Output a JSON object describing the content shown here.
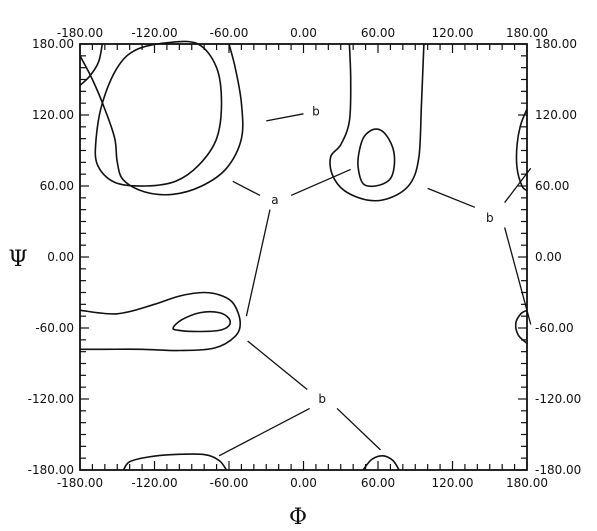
{
  "chart_data": {
    "type": "contour",
    "xlabel": "Φ",
    "ylabel": "Ψ",
    "xlim": [
      -180,
      180
    ],
    "ylim": [
      -180,
      180
    ],
    "x_ticks": [
      "-180.00",
      "-120.00",
      "-60.00",
      "0.00",
      "60.00",
      "120.00",
      "180.00"
    ],
    "y_ticks": [
      "-180.00",
      "-120.00",
      "-60.00",
      "0.00",
      "60.00",
      "120.00",
      "180.00"
    ],
    "minor_tick_step": 10,
    "grid": false,
    "region_labels": [
      {
        "text": "a",
        "phi": -23,
        "psi": 48
      },
      {
        "text": "b",
        "phi": 10,
        "psi": 123
      },
      {
        "text": "b",
        "phi": 150,
        "psi": 33
      },
      {
        "text": "b",
        "phi": 15,
        "psi": -120
      }
    ],
    "leader_lines": [
      {
        "label_index": 0,
        "from": [
          -35,
          52
        ],
        "to": [
          -57,
          64
        ]
      },
      {
        "label_index": 0,
        "from": [
          -27,
          40
        ],
        "to": [
          -46,
          -50
        ]
      },
      {
        "label_index": 0,
        "from": [
          -10,
          52
        ],
        "to": [
          38,
          74
        ]
      },
      {
        "label_index": 1,
        "from": [
          0,
          121
        ],
        "to": [
          -30,
          115
        ]
      },
      {
        "label_index": 2,
        "from": [
          138,
          42
        ],
        "to": [
          100,
          58
        ]
      },
      {
        "label_index": 2,
        "from": [
          162,
          46
        ],
        "to": [
          183,
          75
        ]
      },
      {
        "label_index": 2,
        "from": [
          162,
          25
        ],
        "to": [
          183,
          -57
        ]
      },
      {
        "label_index": 3,
        "from": [
          3,
          -112
        ],
        "to": [
          -45,
          -71
        ]
      },
      {
        "label_index": 3,
        "from": [
          5,
          -128
        ],
        "to": [
          -68,
          -168
        ]
      },
      {
        "label_index": 3,
        "from": [
          27,
          -128
        ],
        "to": [
          62,
          -163
        ]
      }
    ],
    "contours": [
      {
        "name": "outer-upper-left",
        "points": [
          [
            -180,
            170
          ],
          [
            -170,
            150
          ],
          [
            -160,
            125
          ],
          [
            -152,
            100
          ],
          [
            -150,
            80
          ],
          [
            -145,
            65
          ],
          [
            -128,
            55
          ],
          [
            -105,
            53
          ],
          [
            -82,
            60
          ],
          [
            -62,
            75
          ],
          [
            -50,
            100
          ],
          [
            -50,
            130
          ],
          [
            -55,
            160
          ],
          [
            -60,
            180
          ]
        ]
      },
      {
        "name": "inner-upper-left",
        "points": [
          [
            -150,
            160
          ],
          [
            -162,
            130
          ],
          [
            -167,
            100
          ],
          [
            -166,
            78
          ],
          [
            -152,
            63
          ],
          [
            -127,
            60
          ],
          [
            -103,
            64
          ],
          [
            -84,
            78
          ],
          [
            -70,
            100
          ],
          [
            -66,
            130
          ],
          [
            -70,
            160
          ],
          [
            -85,
            180
          ],
          [
            -110,
            181
          ],
          [
            -135,
            175
          ],
          [
            -150,
            160
          ]
        ]
      },
      {
        "name": "outer-upper-middle",
        "points": [
          [
            37,
            180
          ],
          [
            38,
            150
          ],
          [
            37,
            115
          ],
          [
            30,
            95
          ],
          [
            22,
            85
          ],
          [
            23,
            70
          ],
          [
            33,
            56
          ],
          [
            52,
            48
          ],
          [
            70,
            50
          ],
          [
            86,
            62
          ],
          [
            93,
            85
          ],
          [
            95,
            130
          ],
          [
            97,
            180
          ]
        ]
      },
      {
        "name": "inner-upper-middle",
        "points": [
          [
            48,
            62
          ],
          [
            58,
            60
          ],
          [
            69,
            65
          ],
          [
            73,
            76
          ],
          [
            72,
            92
          ],
          [
            65,
            105
          ],
          [
            57,
            108
          ],
          [
            49,
            102
          ],
          [
            45,
            90
          ],
          [
            44,
            76
          ],
          [
            48,
            62
          ]
        ]
      },
      {
        "name": "outer-mid-left",
        "points": [
          [
            -180,
            -45
          ],
          [
            -150,
            -48
          ],
          [
            -120,
            -40
          ],
          [
            -100,
            -33
          ],
          [
            -80,
            -30
          ],
          [
            -65,
            -33
          ],
          [
            -56,
            -40
          ],
          [
            -51,
            -55
          ],
          [
            -55,
            -67
          ],
          [
            -72,
            -77
          ],
          [
            -100,
            -79
          ],
          [
            -130,
            -78
          ],
          [
            -160,
            -78
          ],
          [
            -180,
            -78
          ]
        ]
      },
      {
        "name": "inner-mid-left",
        "points": [
          [
            -105,
            -60
          ],
          [
            -98,
            -53
          ],
          [
            -83,
            -47
          ],
          [
            -68,
            -47
          ],
          [
            -60,
            -52
          ],
          [
            -60,
            -58
          ],
          [
            -68,
            -62
          ],
          [
            -85,
            -63
          ],
          [
            -100,
            -62
          ],
          [
            -105,
            -60
          ]
        ]
      },
      {
        "name": "outer-bottom-left",
        "points": [
          [
            -145,
            -180
          ],
          [
            -140,
            -173
          ],
          [
            -125,
            -169
          ],
          [
            -105,
            -167
          ],
          [
            -80,
            -167
          ],
          [
            -68,
            -172
          ],
          [
            -62,
            -180
          ]
        ]
      },
      {
        "name": "outer-bottom-middle",
        "points": [
          [
            48,
            -180
          ],
          [
            55,
            -171
          ],
          [
            64,
            -168
          ],
          [
            72,
            -172
          ],
          [
            77,
            -180
          ]
        ]
      },
      {
        "name": "outer-right-upper",
        "points": [
          [
            180,
            125
          ],
          [
            175,
            112
          ],
          [
            172,
            95
          ],
          [
            172,
            75
          ],
          [
            176,
            60
          ],
          [
            180,
            56
          ]
        ]
      },
      {
        "name": "outer-right-lower",
        "points": [
          [
            180,
            -45
          ],
          [
            175,
            -48
          ],
          [
            171,
            -56
          ],
          [
            173,
            -66
          ],
          [
            180,
            -73
          ]
        ]
      },
      {
        "name": "outer-top-left-corner",
        "points": [
          [
            -180,
            145
          ],
          [
            -172,
            153
          ],
          [
            -165,
            165
          ],
          [
            -162,
            180
          ]
        ]
      }
    ]
  }
}
